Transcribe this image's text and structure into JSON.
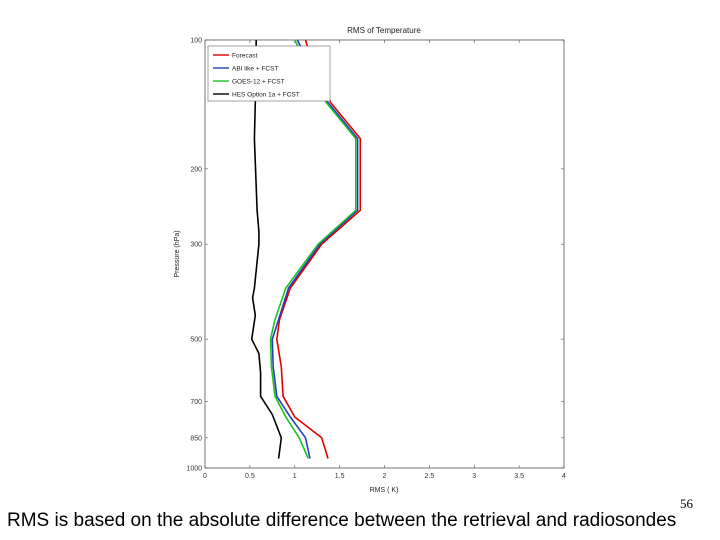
{
  "chart_data": {
    "type": "line",
    "title": "RMS of Temperature",
    "xlabel": "RMS ( K)",
    "ylabel": "Pressure (hPa)",
    "xlim": [
      0,
      4
    ],
    "ylim": [
      100,
      1000
    ],
    "y_scale": "log",
    "y_inverted": true,
    "x_ticks": [
      "0",
      "0.5",
      "1",
      "1.5",
      "2",
      "2.5",
      "3",
      "3.5",
      "4"
    ],
    "y_ticks": [
      100,
      200,
      300,
      500,
      700,
      850,
      1000
    ],
    "y_tick_labels": [
      "100",
      "200",
      "300",
      "500",
      "700",
      "850",
      "1000"
    ],
    "grid": false,
    "legend_position": "top-left",
    "series": [
      {
        "name": "Forecast",
        "color": "#e00000",
        "points": [
          [
            1.12,
            100
          ],
          [
            1.15,
            105
          ],
          [
            1.4,
            140
          ],
          [
            1.73,
            170
          ],
          [
            1.73,
            250
          ],
          [
            1.3,
            300
          ],
          [
            0.95,
            380
          ],
          [
            0.83,
            450
          ],
          [
            0.8,
            500
          ],
          [
            0.85,
            580
          ],
          [
            0.87,
            680
          ],
          [
            1.0,
            760
          ],
          [
            1.3,
            850
          ],
          [
            1.37,
            950
          ]
        ]
      },
      {
        "name": "ABI like + FCST",
        "color": "#2040c0",
        "points": [
          [
            1.03,
            100
          ],
          [
            1.08,
            105
          ],
          [
            1.37,
            140
          ],
          [
            1.7,
            170
          ],
          [
            1.7,
            250
          ],
          [
            1.28,
            300
          ],
          [
            0.93,
            380
          ],
          [
            0.82,
            450
          ],
          [
            0.75,
            500
          ],
          [
            0.76,
            580
          ],
          [
            0.8,
            680
          ],
          [
            0.95,
            760
          ],
          [
            1.12,
            850
          ],
          [
            1.17,
            950
          ]
        ]
      },
      {
        "name": "GOES-12 + FCST",
        "color": "#20c020",
        "points": [
          [
            1.0,
            100
          ],
          [
            1.05,
            105
          ],
          [
            1.35,
            140
          ],
          [
            1.68,
            170
          ],
          [
            1.68,
            250
          ],
          [
            1.26,
            300
          ],
          [
            0.9,
            380
          ],
          [
            0.78,
            450
          ],
          [
            0.73,
            500
          ],
          [
            0.74,
            580
          ],
          [
            0.78,
            680
          ],
          [
            0.9,
            760
          ],
          [
            1.05,
            850
          ],
          [
            1.15,
            950
          ]
        ]
      },
      {
        "name": "HES Option 1a + FCST",
        "color": "#000000",
        "points": [
          [
            0.57,
            100
          ],
          [
            0.56,
            140
          ],
          [
            0.55,
            170
          ],
          [
            0.58,
            250
          ],
          [
            0.6,
            280
          ],
          [
            0.6,
            300
          ],
          [
            0.55,
            380
          ],
          [
            0.53,
            400
          ],
          [
            0.56,
            440
          ],
          [
            0.52,
            500
          ],
          [
            0.6,
            540
          ],
          [
            0.62,
            600
          ],
          [
            0.62,
            680
          ],
          [
            0.75,
            750
          ],
          [
            0.85,
            850
          ],
          [
            0.82,
            950
          ]
        ]
      }
    ]
  },
  "slide": {
    "page_number": "56",
    "caption": "RMS is based on the absolute difference between the retrieval and radiosondes"
  }
}
